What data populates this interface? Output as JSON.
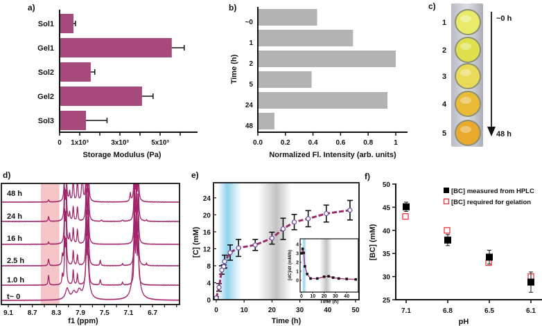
{
  "chart_data": [
    {
      "panel": "a)",
      "type": "bar",
      "orientation": "horizontal",
      "categories": [
        "Sol1",
        "Gel1",
        "Sol2",
        "Gel2",
        "Sol3"
      ],
      "values": [
        690,
        5580,
        1550,
        4100,
        1310
      ],
      "errors": [
        100,
        620,
        200,
        550,
        1050
      ],
      "xlabel": "Storage Modulus (Pa)",
      "xlim": [
        0,
        6800
      ],
      "xticks": [
        {
          "v": 0,
          "label": "0"
        },
        {
          "v": 1000,
          "label": "1x10³"
        },
        {
          "v": 3000,
          "label": "3x10³"
        },
        {
          "v": 5000,
          "label": "5x10³"
        }
      ],
      "minor_ticks": [
        2000,
        4000,
        6000
      ],
      "color": "#a8497c"
    },
    {
      "panel": "b)",
      "type": "bar",
      "orientation": "horizontal",
      "categories": [
        "~0",
        "1",
        "2",
        "5",
        "24",
        "48"
      ],
      "values": [
        0.43,
        0.69,
        1.0,
        0.39,
        0.94,
        0.12
      ],
      "xlabel": "Normalized Fl. Intensity (arb. units)",
      "ylabel": "Time (h)",
      "xlim": [
        0,
        1.09
      ],
      "xticks": [
        {
          "v": 0,
          "label": "0.0"
        },
        {
          "v": 0.2,
          "label": "0.2"
        },
        {
          "v": 0.4,
          "label": "0.4"
        },
        {
          "v": 0.6,
          "label": "0.6"
        },
        {
          "v": 0.8,
          "label": "0.8"
        },
        {
          "v": 1,
          "label": "1"
        }
      ],
      "color": "#b3b3b3"
    },
    {
      "panel": "c)",
      "type": "photo",
      "vial_labels": [
        "1",
        "2",
        "3",
        "4",
        "5"
      ],
      "vial_colors": [
        "#e8ea6a",
        "#dfe04e",
        "#e9db58",
        "#eabb36",
        "#e8a92c"
      ],
      "arrow_start": "~0 h",
      "arrow_end": "48 h"
    },
    {
      "panel": "d)",
      "type": "line",
      "xlabel": "f1 (ppm)",
      "xlim": [
        9.22,
        6.25
      ],
      "xticks": [
        {
          "v": 9.1,
          "label": "9.1"
        },
        {
          "v": 8.7,
          "label": "8.7"
        },
        {
          "v": 8.3,
          "label": "8.3"
        },
        {
          "v": 7.9,
          "label": "7.9"
        },
        {
          "v": 7.5,
          "label": "7.5"
        },
        {
          "v": 7.1,
          "label": "7.1"
        },
        {
          "v": 6.7,
          "label": "6.7"
        }
      ],
      "highlight_ppm": [
        8.56,
        8.25
      ],
      "series": [
        {
          "name": "48 h",
          "peaks": [
            [
              8.43,
              3
            ],
            [
              8.16,
              70
            ],
            [
              8.14,
              70
            ],
            [
              8.08,
              14
            ],
            [
              8.02,
              40
            ],
            [
              7.95,
              38
            ],
            [
              7.87,
              60
            ],
            [
              7.8,
              80
            ],
            [
              7.77,
              80
            ],
            [
              7.07,
              12
            ],
            [
              7.0,
              80
            ],
            [
              6.97,
              80
            ],
            [
              6.94,
              70
            ]
          ]
        },
        {
          "name": "24 h",
          "peaks": [
            [
              8.43,
              7
            ],
            [
              8.16,
              70
            ],
            [
              8.14,
              70
            ],
            [
              8.08,
              12
            ],
            [
              8.02,
              22
            ],
            [
              7.95,
              22
            ],
            [
              7.8,
              80
            ],
            [
              7.77,
              80
            ],
            [
              7.55,
              2
            ],
            [
              7.2,
              2
            ],
            [
              7.0,
              80
            ],
            [
              6.97,
              80
            ],
            [
              6.94,
              70
            ],
            [
              6.8,
              2
            ]
          ]
        },
        {
          "name": "16 h",
          "peaks": [
            [
              8.43,
              3
            ],
            [
              8.16,
              70
            ],
            [
              8.14,
              70
            ],
            [
              8.08,
              14
            ],
            [
              8.02,
              24
            ],
            [
              7.95,
              22
            ],
            [
              7.8,
              80
            ],
            [
              7.77,
              80
            ],
            [
              7.0,
              80
            ],
            [
              6.97,
              80
            ],
            [
              6.94,
              70
            ]
          ]
        },
        {
          "name": "2.5 h",
          "peaks": [
            [
              8.43,
              10
            ],
            [
              8.2,
              14
            ],
            [
              8.16,
              70
            ],
            [
              8.14,
              70
            ],
            [
              8.02,
              22
            ],
            [
              7.95,
              16
            ],
            [
              7.8,
              80
            ],
            [
              7.77,
              80
            ],
            [
              7.57,
              8
            ],
            [
              7.2,
              3
            ],
            [
              7.0,
              80
            ],
            [
              6.97,
              80
            ],
            [
              6.94,
              70
            ],
            [
              6.8,
              3
            ]
          ]
        },
        {
          "name": "1.0 h",
          "peaks": [
            [
              8.43,
              15
            ],
            [
              8.2,
              14
            ],
            [
              8.16,
              60
            ],
            [
              8.14,
              60
            ],
            [
              8.02,
              22
            ],
            [
              7.95,
              16
            ],
            [
              7.8,
              80
            ],
            [
              7.77,
              80
            ],
            [
              7.57,
              8
            ],
            [
              7.2,
              4
            ],
            [
              7.0,
              80
            ],
            [
              6.97,
              80
            ],
            [
              6.94,
              70
            ]
          ]
        },
        {
          "name": "t~ 0",
          "peaks": [
            [
              8.12,
              16
            ],
            [
              8.01,
              10
            ],
            [
              7.92,
              12
            ],
            [
              7.79,
              80
            ],
            [
              7.0,
              80
            ],
            [
              6.95,
              70
            ]
          ],
          "broad": true
        }
      ],
      "color": "#a0246a"
    },
    {
      "panel": "e)",
      "type": "line",
      "xlabel": "Time (h)",
      "ylabel": "[C] (mM)",
      "xlim": [
        -1,
        50
      ],
      "ylim": [
        0,
        27.5
      ],
      "xticks": [
        0,
        10,
        20,
        30,
        40,
        50
      ],
      "yticks": [
        0,
        4,
        8,
        12,
        16,
        20,
        24
      ],
      "x": [
        0,
        1,
        2,
        2.7,
        3,
        5,
        8,
        14,
        20,
        24,
        28,
        33,
        39.5,
        48
      ],
      "y": [
        0.4,
        2.9,
        7.0,
        7.8,
        9.0,
        11.1,
        12.2,
        12.9,
        14.5,
        16.7,
        18.3,
        19.1,
        20.3,
        21.1
      ],
      "err": [
        0.3,
        0.9,
        1.0,
        0.4,
        1.5,
        1.8,
        2.0,
        1.3,
        1.4,
        2.5,
        1.8,
        1.9,
        2.0,
        2.3
      ],
      "shaded_regions": [
        {
          "from": 0.5,
          "to": 9,
          "color": "#6cc3e6"
        },
        {
          "from": 15,
          "to": 27,
          "color": "#9a9a9a"
        }
      ],
      "line_color": "#9a2a68",
      "marker_color": "#6a4aa0",
      "inset": {
        "xlabel": "Time (h)",
        "ylabel": "[dC]/dt (mM/h)",
        "xlim": [
          -1,
          48
        ],
        "ylim": [
          -0.5,
          4.4
        ],
        "xticks": [
          0,
          10,
          20,
          30,
          40
        ],
        "yticks": [
          0,
          1,
          2,
          3,
          4
        ],
        "x": [
          0,
          1,
          2,
          3,
          5,
          8,
          14,
          20,
          24,
          28,
          33,
          40,
          48
        ],
        "y": [
          3.0,
          3.5,
          3.05,
          1.55,
          0.7,
          0.2,
          0.2,
          0.4,
          0.45,
          0.3,
          0.2,
          0.15,
          0.1
        ]
      }
    },
    {
      "panel": "f)",
      "type": "scatter",
      "xlabel": "pH",
      "ylabel": "[BC] (mM)",
      "categories": [
        "7.1",
        "6.8",
        "6.5",
        "6.1"
      ],
      "ylim": [
        25,
        50
      ],
      "yticks": [
        25,
        30,
        35,
        40,
        45,
        50
      ],
      "legend_position": "top-right",
      "series": [
        {
          "name": "[BC] measured from HPLC",
          "values": [
            45.1,
            37.9,
            34.2,
            28.8
          ],
          "errors": [
            1.0,
            1.2,
            1.5,
            2.2
          ],
          "marker": "filled-square",
          "color": "#000000"
        },
        {
          "name": "[BC] required for gelation",
          "values": [
            43,
            40,
            33,
            30
          ],
          "marker": "open-square",
          "color": "#e8353a"
        }
      ]
    }
  ]
}
